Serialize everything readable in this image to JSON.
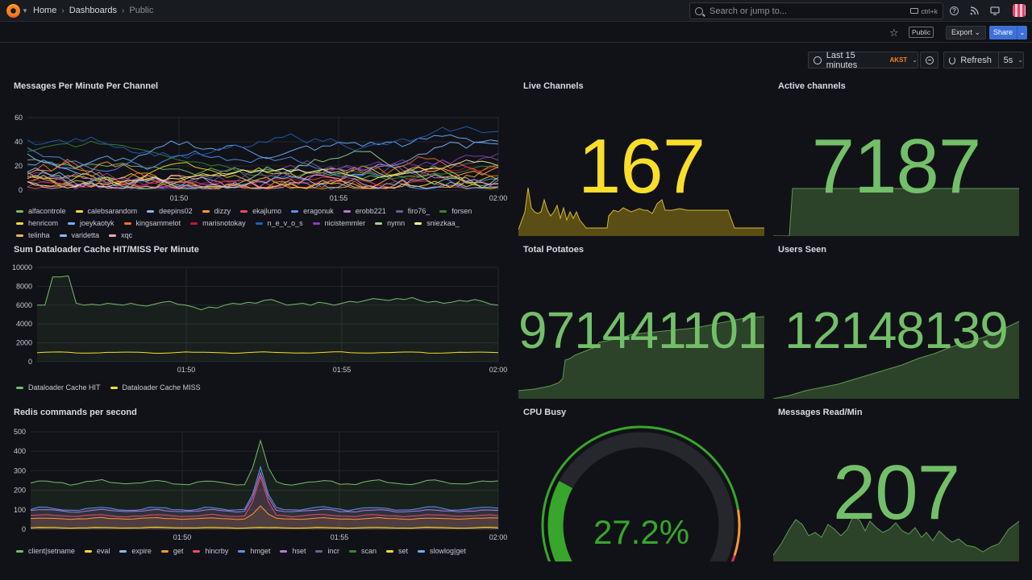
{
  "nav": {
    "breadcrumbs": [
      "Home",
      "Dashboards",
      "Public"
    ],
    "search_placeholder": "Search or jump to...",
    "search_shortcut": "ctrl+k"
  },
  "toolbar": {
    "public_badge": "Public",
    "export_label": "Export",
    "share_label": "Share"
  },
  "timepicker": {
    "range_label": "Last 15 minutes",
    "timezone": "AKST",
    "refresh_label": "Refresh",
    "refresh_interval": "5s"
  },
  "colors": {
    "green": "#73bf69",
    "yellow": "#fade2a",
    "orange": "#ff9830",
    "red": "#f2495c",
    "blue": "#5794f2",
    "purple": "#b877d9"
  },
  "panels": {
    "messages_per_minute": {
      "title": "Messages Per Minute Per Channel",
      "yticks": [
        "0",
        "20",
        "40",
        "60"
      ],
      "xticks": [
        "01:50",
        "01:55",
        "02:00"
      ],
      "legend": [
        {
          "name": "alfacontrole",
          "color": "#73bf69"
        },
        {
          "name": "calebsarandom",
          "color": "#fade2a"
        },
        {
          "name": "deepins02",
          "color": "#8ab8ff"
        },
        {
          "name": "dizzy",
          "color": "#ff9830"
        },
        {
          "name": "ekajlumo",
          "color": "#f2495c"
        },
        {
          "name": "eragonuk",
          "color": "#5794f2"
        },
        {
          "name": "erobb221",
          "color": "#b877d9"
        },
        {
          "name": "firo76_",
          "color": "#705da0"
        },
        {
          "name": "forsen",
          "color": "#37872d"
        },
        {
          "name": "henricom",
          "color": "#fade2a"
        },
        {
          "name": "joeykaotyk",
          "color": "#6cb2ff"
        },
        {
          "name": "kingsammelot",
          "color": "#f2732c"
        },
        {
          "name": "marisnotokay",
          "color": "#c4162a"
        },
        {
          "name": "n_e_v_o_s",
          "color": "#1f60c4"
        },
        {
          "name": "nicistemmler",
          "color": "#8f3bb8"
        },
        {
          "name": "nymn",
          "color": "#96d98d"
        },
        {
          "name": "sniezkaa_",
          "color": "#fff899"
        },
        {
          "name": "telinha",
          "color": "#ffb357"
        },
        {
          "name": "varidetta",
          "color": "#8ab8ff"
        },
        {
          "name": "xqc",
          "color": "#ffa6b0"
        }
      ]
    },
    "dataloader": {
      "title": "Sum Dataloader Cache HIT/MISS Per Minute",
      "yticks": [
        "0",
        "2000",
        "4000",
        "6000",
        "8000",
        "10000"
      ],
      "xticks": [
        "01:50",
        "01:55",
        "02:00"
      ],
      "legend": [
        {
          "name": "Dataloader Cache HIT",
          "color": "#73bf69"
        },
        {
          "name": "Dataloader Cache MISS",
          "color": "#fade2a"
        }
      ]
    },
    "redis": {
      "title": "Redis commands per second",
      "yticks": [
        "0",
        "100",
        "200",
        "300",
        "400",
        "500"
      ],
      "xticks": [
        "01:50",
        "01:55",
        "02:00"
      ],
      "legend": [
        {
          "name": "client|setname",
          "color": "#73bf69"
        },
        {
          "name": "eval",
          "color": "#fade2a"
        },
        {
          "name": "expire",
          "color": "#8ab8ff"
        },
        {
          "name": "get",
          "color": "#ff9830"
        },
        {
          "name": "hincrby",
          "color": "#f2495c"
        },
        {
          "name": "hmget",
          "color": "#5794f2"
        },
        {
          "name": "hset",
          "color": "#b877d9"
        },
        {
          "name": "incr",
          "color": "#705da0"
        },
        {
          "name": "scan",
          "color": "#37872d"
        },
        {
          "name": "set",
          "color": "#fade2a"
        },
        {
          "name": "slowlog|get",
          "color": "#6cb2ff"
        }
      ]
    },
    "live_channels": {
      "title": "Live Channels",
      "value": "167",
      "color": "#fade2a"
    },
    "active_channels": {
      "title": "Active channels",
      "value": "7187",
      "color": "#73bf69"
    },
    "total_potatoes": {
      "title": "Total Potatoes",
      "value": "971441101",
      "color": "#73bf69"
    },
    "users_seen": {
      "title": "Users Seen",
      "value": "12148139",
      "color": "#73bf69"
    },
    "cpu_busy": {
      "title": "CPU Busy",
      "value": "27.2%",
      "percent": 27.2,
      "color": "#37a62b"
    },
    "messages_read": {
      "title": "Messages Read/Min",
      "value": "207",
      "color": "#73bf69"
    }
  }
}
